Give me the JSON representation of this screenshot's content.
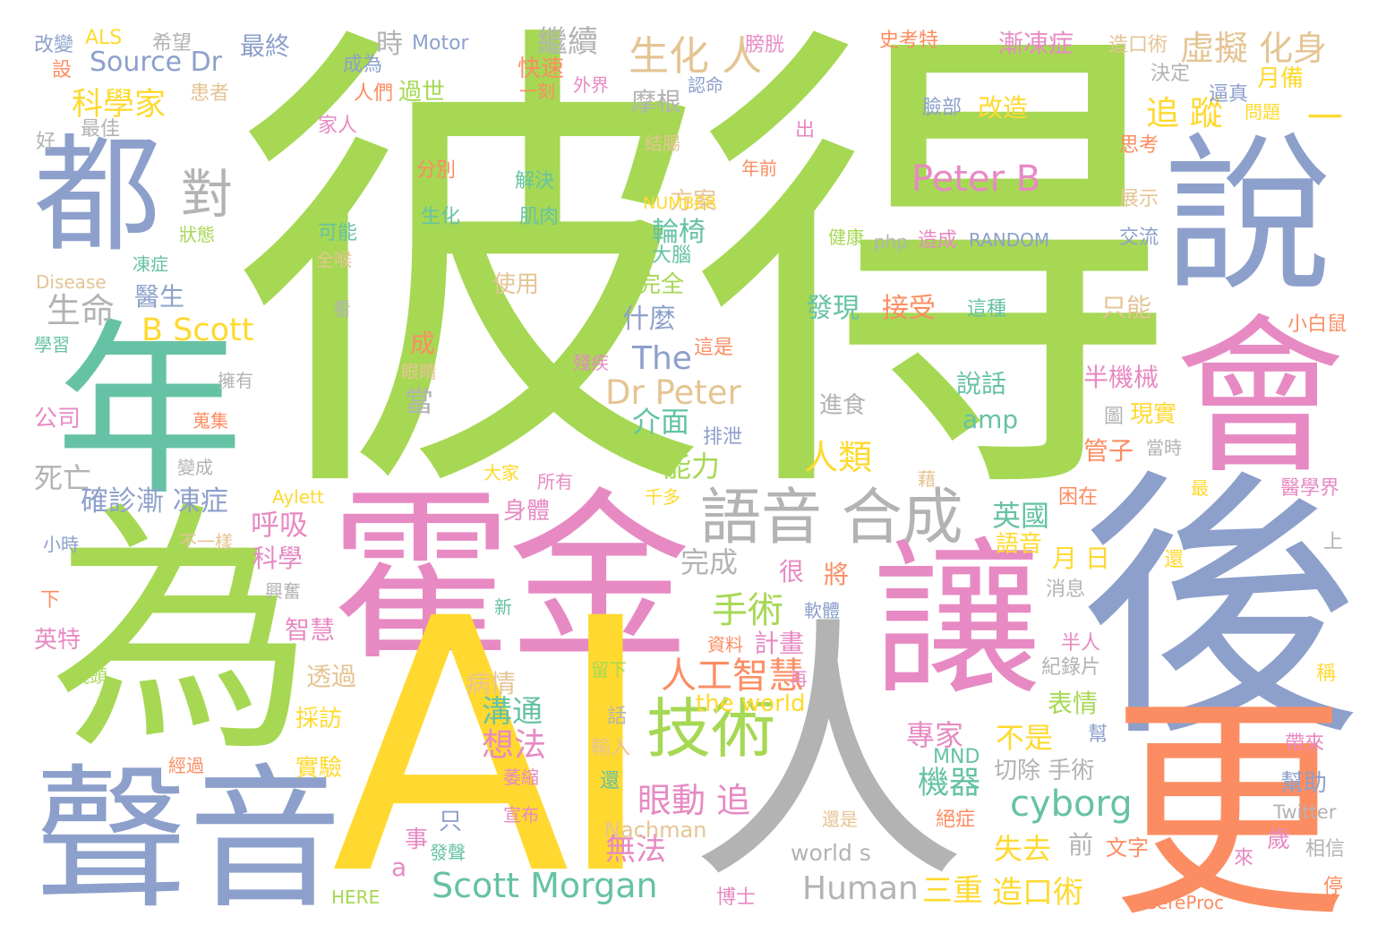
{
  "palette": {
    "green": "#a6d854",
    "blue": "#8da0cb",
    "pink": "#e78ac3",
    "teal": "#66c2a5",
    "orange": "#fc8d62",
    "yellow": "#ffd92f",
    "gray": "#b3b3b3",
    "tan": "#e5c494"
  },
  "words": [
    {
      "text": "彼得",
      "color": "green"
    },
    {
      "text": "霍金",
      "color": "pink"
    },
    {
      "text": "AI",
      "color": "yellow"
    },
    {
      "text": "人",
      "color": "gray"
    },
    {
      "text": "為",
      "color": "green"
    },
    {
      "text": "後",
      "color": "blue"
    },
    {
      "text": "年",
      "color": "teal"
    },
    {
      "text": "讓",
      "color": "pink"
    },
    {
      "text": "說",
      "color": "blue"
    },
    {
      "text": "會",
      "color": "pink"
    },
    {
      "text": "更",
      "color": "orange"
    },
    {
      "text": "聲音",
      "color": "blue"
    },
    {
      "text": "都",
      "color": "blue"
    },
    {
      "text": "語音 合成",
      "color": "gray"
    },
    {
      "text": "技術",
      "color": "green"
    },
    {
      "text": "Scott Morgan",
      "color": "teal"
    },
    {
      "text": "對",
      "color": "gray"
    },
    {
      "text": "生命",
      "color": "gray"
    },
    {
      "text": "B Scott",
      "color": "yellow"
    },
    {
      "text": "Source Dr",
      "color": "blue"
    },
    {
      "text": "科學家",
      "color": "yellow"
    },
    {
      "text": "生化 人",
      "color": "tan"
    },
    {
      "text": "虛擬 化身",
      "color": "tan"
    },
    {
      "text": "追 蹤",
      "color": "yellow"
    },
    {
      "text": "Peter B",
      "color": "pink"
    },
    {
      "text": "Dr Peter",
      "color": "tan"
    },
    {
      "text": "The",
      "color": "blue"
    },
    {
      "text": "人類",
      "color": "yellow"
    },
    {
      "text": "人工智慧",
      "color": "orange"
    },
    {
      "text": "眼動 追",
      "color": "pink"
    },
    {
      "text": "cyborg",
      "color": "teal"
    },
    {
      "text": "Human",
      "color": "gray"
    },
    {
      "text": "三重",
      "color": "yellow"
    },
    {
      "text": "造口術",
      "color": "yellow"
    },
    {
      "text": "確診漸 凍症",
      "color": "blue"
    },
    {
      "text": "死亡",
      "color": "gray"
    },
    {
      "text": "手術",
      "color": "green"
    },
    {
      "text": "想法",
      "color": "pink"
    },
    {
      "text": "無法",
      "color": "pink"
    },
    {
      "text": "機器",
      "color": "teal"
    },
    {
      "text": "英國",
      "color": "teal"
    },
    {
      "text": "專家",
      "color": "pink"
    },
    {
      "text": "不是",
      "color": "yellow"
    },
    {
      "text": "溝通",
      "color": "teal"
    },
    {
      "text": "能力",
      "color": "green"
    },
    {
      "text": "介面",
      "color": "teal"
    },
    {
      "text": "失去",
      "color": "yellow"
    },
    {
      "text": "表情",
      "color": "green"
    },
    {
      "text": "呼吸",
      "color": "pink"
    },
    {
      "text": "科學",
      "color": "pink"
    },
    {
      "text": "繼續",
      "color": "gray"
    },
    {
      "text": "時",
      "color": "gray"
    },
    {
      "text": "Motor",
      "color": "blue"
    },
    {
      "text": "最終",
      "color": "blue"
    },
    {
      "text": "漸凍症",
      "color": "pink"
    },
    {
      "text": "完成",
      "color": "gray"
    },
    {
      "text": "the world",
      "color": "yellow"
    },
    {
      "text": "Nachman",
      "color": "tan"
    },
    {
      "text": "world s",
      "color": "gray"
    },
    {
      "text": "輪椅",
      "color": "teal"
    },
    {
      "text": "發現",
      "color": "teal"
    },
    {
      "text": "接受",
      "color": "orange"
    },
    {
      "text": "改造",
      "color": "yellow"
    },
    {
      "text": "半機械",
      "color": "pink"
    },
    {
      "text": "月 日",
      "color": "yellow"
    },
    {
      "text": "切除 手術",
      "color": "gray"
    },
    {
      "text": "什麼",
      "color": "blue"
    },
    {
      "text": "方案",
      "color": "tan"
    },
    {
      "text": "使用",
      "color": "tan"
    },
    {
      "text": "摩根",
      "color": "gray"
    },
    {
      "text": "快速",
      "color": "orange"
    },
    {
      "text": "過世",
      "color": "green"
    },
    {
      "text": "智慧",
      "color": "pink"
    },
    {
      "text": "透過",
      "color": "tan"
    },
    {
      "text": "採訪",
      "color": "yellow"
    },
    {
      "text": "實驗",
      "color": "yellow"
    },
    {
      "text": "計畫",
      "color": "pink"
    },
    {
      "text": "病情",
      "color": "tan"
    },
    {
      "text": "身體",
      "color": "pink"
    },
    {
      "text": "說話",
      "color": "teal"
    },
    {
      "text": "amp",
      "color": "teal"
    },
    {
      "text": "語音",
      "color": "yellow"
    },
    {
      "text": "管子",
      "color": "orange"
    },
    {
      "text": "現實",
      "color": "yellow"
    },
    {
      "text": "只能",
      "color": "tan"
    },
    {
      "text": "當",
      "color": "gray"
    },
    {
      "text": "成",
      "color": "orange"
    },
    {
      "text": "很",
      "color": "pink"
    },
    {
      "text": "將",
      "color": "orange"
    },
    {
      "text": "前",
      "color": "gray"
    },
    {
      "text": "文字",
      "color": "orange"
    },
    {
      "text": "歲",
      "color": "pink"
    },
    {
      "text": "幫助",
      "color": "blue"
    },
    {
      "text": "事",
      "color": "pink"
    },
    {
      "text": "只",
      "color": "blue"
    },
    {
      "text": "a",
      "color": "pink"
    },
    {
      "text": "英特",
      "color": "pink"
    },
    {
      "text": "公司",
      "color": "pink"
    },
    {
      "text": "醫生",
      "color": "blue"
    },
    {
      "text": "月備",
      "color": "yellow"
    },
    {
      "text": "一",
      "color": "yellow"
    },
    {
      "text": "ALS",
      "color": "yellow"
    },
    {
      "text": "改變",
      "color": "blue"
    },
    {
      "text": "希望",
      "color": "gray"
    },
    {
      "text": "設",
      "color": "orange"
    },
    {
      "text": "患者",
      "color": "tan"
    },
    {
      "text": "成為",
      "color": "blue"
    },
    {
      "text": "人們",
      "color": "orange"
    },
    {
      "text": "家人",
      "color": "pink"
    },
    {
      "text": "好",
      "color": "gray"
    },
    {
      "text": "最佳",
      "color": "gray"
    },
    {
      "text": "膀胱",
      "color": "pink"
    },
    {
      "text": "史考特",
      "color": "orange"
    },
    {
      "text": "造口術",
      "color": "tan"
    },
    {
      "text": "決定",
      "color": "gray"
    },
    {
      "text": "逼真",
      "color": "blue"
    },
    {
      "text": "問題",
      "color": "yellow"
    },
    {
      "text": "臉部",
      "color": "blue"
    },
    {
      "text": "思考",
      "color": "orange"
    },
    {
      "text": "展示",
      "color": "tan"
    },
    {
      "text": "交流",
      "color": "blue"
    },
    {
      "text": "php",
      "color": "gray"
    },
    {
      "text": "造成",
      "color": "pink"
    },
    {
      "text": "RANDOM",
      "color": "blue"
    },
    {
      "text": "健康",
      "color": "green"
    },
    {
      "text": "這種",
      "color": "teal"
    },
    {
      "text": "小白鼠",
      "color": "orange"
    },
    {
      "text": "進食",
      "color": "gray"
    },
    {
      "text": "排泄",
      "color": "blue"
    },
    {
      "text": "圖",
      "color": "gray"
    },
    {
      "text": "當時",
      "color": "gray"
    },
    {
      "text": "醫學界",
      "color": "pink"
    },
    {
      "text": "困在",
      "color": "orange"
    },
    {
      "text": "最",
      "color": "yellow"
    },
    {
      "text": "上",
      "color": "gray"
    },
    {
      "text": "還",
      "color": "yellow"
    },
    {
      "text": "消息",
      "color": "gray"
    },
    {
      "text": "半人",
      "color": "pink"
    },
    {
      "text": "紀錄片",
      "color": "gray"
    },
    {
      "text": "稱",
      "color": "yellow"
    },
    {
      "text": "幫",
      "color": "blue"
    },
    {
      "text": "帶來",
      "color": "pink"
    },
    {
      "text": "絕症",
      "color": "orange"
    },
    {
      "text": "還是",
      "color": "tan"
    },
    {
      "text": "Twitter",
      "color": "gray"
    },
    {
      "text": "相信",
      "color": "gray"
    },
    {
      "text": "來",
      "color": "pink"
    },
    {
      "text": "停",
      "color": "orange"
    },
    {
      "text": "CereProc",
      "color": "orange"
    },
    {
      "text": "博士",
      "color": "pink"
    },
    {
      "text": "HERE",
      "color": "green"
    },
    {
      "text": "發聲",
      "color": "teal"
    },
    {
      "text": "宣布",
      "color": "pink"
    },
    {
      "text": "萎縮",
      "color": "pink"
    },
    {
      "text": "還",
      "color": "teal"
    },
    {
      "text": "輸入",
      "color": "tan"
    },
    {
      "text": "MND",
      "color": "teal"
    },
    {
      "text": "話",
      "color": "gray"
    },
    {
      "text": "經過",
      "color": "orange"
    },
    {
      "text": "鏡頭",
      "color": "green"
    },
    {
      "text": "興奮",
      "color": "gray"
    },
    {
      "text": "下",
      "color": "orange"
    },
    {
      "text": "小時",
      "color": "blue"
    },
    {
      "text": "不一樣",
      "color": "tan"
    },
    {
      "text": "Aylett",
      "color": "yellow"
    },
    {
      "text": "大家",
      "color": "yellow"
    },
    {
      "text": "所有",
      "color": "pink"
    },
    {
      "text": "千多",
      "color": "yellow"
    },
    {
      "text": "變成",
      "color": "gray"
    },
    {
      "text": "藉",
      "color": "tan"
    },
    {
      "text": "擁有",
      "color": "gray"
    },
    {
      "text": "蒐集",
      "color": "orange"
    },
    {
      "text": "眼睛",
      "color": "tan"
    },
    {
      "text": "殘疾",
      "color": "pink"
    },
    {
      "text": "這是",
      "color": "orange"
    },
    {
      "text": "學習",
      "color": "teal"
    },
    {
      "text": "看",
      "color": "gray"
    },
    {
      "text": "Disease",
      "color": "tan"
    },
    {
      "text": "凍症",
      "color": "teal"
    },
    {
      "text": "狀態",
      "color": "green"
    },
    {
      "text": "全喉",
      "color": "tan"
    },
    {
      "text": "可能",
      "color": "teal"
    },
    {
      "text": "生化",
      "color": "teal"
    },
    {
      "text": "肌肉",
      "color": "teal"
    },
    {
      "text": "分別",
      "color": "orange"
    },
    {
      "text": "解決",
      "color": "teal"
    },
    {
      "text": "NUMBER",
      "color": "yellow"
    },
    {
      "text": "大腦",
      "color": "teal"
    },
    {
      "text": "完全",
      "color": "green"
    },
    {
      "text": "年前",
      "color": "orange"
    },
    {
      "text": "結腸",
      "color": "tan"
    },
    {
      "text": "出",
      "color": "pink"
    },
    {
      "text": "認命",
      "color": "blue"
    },
    {
      "text": "外界",
      "color": "pink"
    },
    {
      "text": "一刻",
      "color": "orange"
    },
    {
      "text": "資料",
      "color": "orange"
    },
    {
      "text": "再",
      "color": "pink"
    },
    {
      "text": "留下",
      "color": "green"
    },
    {
      "text": "軟體",
      "color": "blue"
    },
    {
      "text": "新",
      "color": "teal"
    }
  ]
}
